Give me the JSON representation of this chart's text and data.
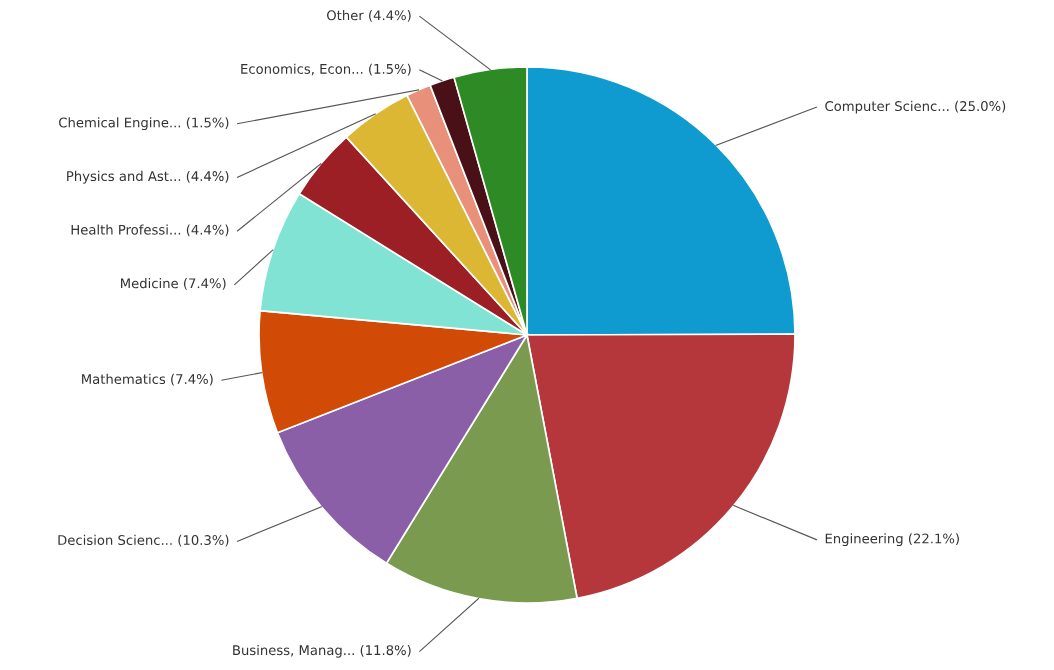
{
  "chart_data": {
    "type": "pie",
    "categories": [
      "Computer Scienc...",
      "Engineering",
      "Business, Manag...",
      "Decision Scienc...",
      "Mathematics",
      "Medicine",
      "Health Professi...",
      "Physics and Ast...",
      "Chemical Engine...",
      "Economics, Econ...",
      "Other"
    ],
    "values": [
      25.0,
      22.1,
      11.8,
      10.3,
      7.4,
      7.4,
      4.4,
      4.4,
      1.5,
      1.5,
      4.4
    ],
    "value_labels": [
      "(25.0%)",
      "(22.1%)",
      "(11.8%)",
      "(10.3%)",
      "(7.4%)",
      "(7.4%)",
      "(4.4%)",
      "(4.4%)",
      "(1.5%)",
      "(1.5%)",
      "(4.4%)"
    ],
    "colors": [
      "#0f9bd0",
      "#b5373c",
      "#7a9a50",
      "#8a5fa8",
      "#d14a06",
      "#80e3d3",
      "#9b1f25",
      "#dbb733",
      "#e8907a",
      "#4a1018",
      "#2e8a24"
    ]
  }
}
